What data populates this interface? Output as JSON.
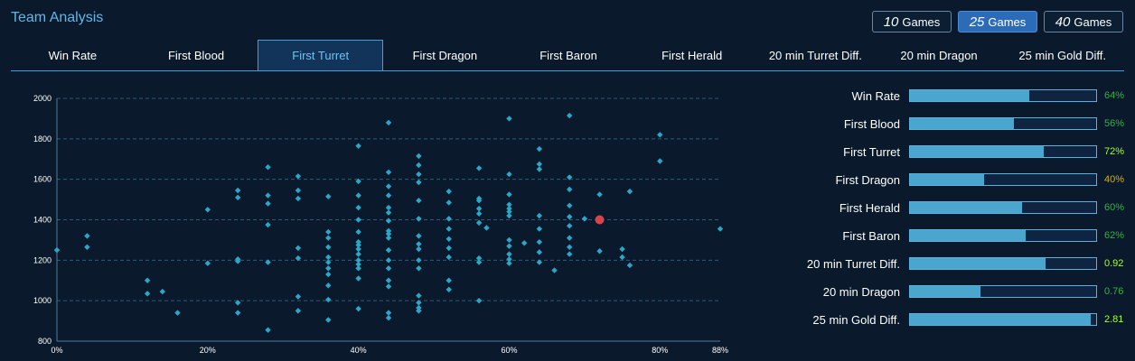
{
  "header": {
    "title": "Team Analysis",
    "games": [
      {
        "num": "10",
        "label": "Games",
        "active": false
      },
      {
        "num": "25",
        "label": "Games",
        "active": true
      },
      {
        "num": "40",
        "label": "Games",
        "active": false
      }
    ]
  },
  "tabs": [
    {
      "label": "Win Rate",
      "active": false
    },
    {
      "label": "First Blood",
      "active": false
    },
    {
      "label": "First Turret",
      "active": true
    },
    {
      "label": "First Dragon",
      "active": false
    },
    {
      "label": "First Baron",
      "active": false
    },
    {
      "label": "First Herald",
      "active": false
    },
    {
      "label": "20 min Turret Diff.",
      "active": false
    },
    {
      "label": "20 min Dragon",
      "active": false
    },
    {
      "label": "25 min Gold Diff.",
      "active": false
    }
  ],
  "chart_data": {
    "type": "scatter",
    "title": "",
    "xlabel": "",
    "ylabel": "",
    "xlim": [
      0,
      88
    ],
    "ylim": [
      800,
      2000
    ],
    "xticks": [
      0,
      20,
      40,
      60,
      80,
      88
    ],
    "xtick_labels": [
      "0%",
      "20%",
      "40%",
      "60%",
      "80%",
      "88%"
    ],
    "yticks": [
      800,
      1000,
      1200,
      1400,
      1600,
      1800,
      2000
    ],
    "ytick_labels": [
      "800",
      "1000",
      "1200",
      "1400",
      "1600",
      "1800",
      "2000"
    ],
    "grid": true,
    "colors": {
      "points": "#2aa7c8",
      "highlight": "#d9434b",
      "grid": "#2a5a78",
      "axis": "#4d7fa0"
    },
    "series": [
      {
        "points": [
          [
            0,
            1250
          ],
          [
            4,
            1320
          ],
          [
            4,
            1265
          ],
          [
            12,
            1100
          ],
          [
            12,
            1035
          ],
          [
            14,
            1045
          ],
          [
            16,
            940
          ],
          [
            20,
            1450
          ],
          [
            20,
            1185
          ],
          [
            24,
            1545
          ],
          [
            24,
            1510
          ],
          [
            24,
            1205
          ],
          [
            24,
            1195
          ],
          [
            24,
            990
          ],
          [
            24,
            940
          ],
          [
            28,
            1660
          ],
          [
            28,
            1520
          ],
          [
            28,
            1480
          ],
          [
            28,
            1375
          ],
          [
            28,
            1190
          ],
          [
            28,
            855
          ],
          [
            32,
            1615
          ],
          [
            32,
            1545
          ],
          [
            32,
            1505
          ],
          [
            32,
            1260
          ],
          [
            32,
            1210
          ],
          [
            32,
            1020
          ],
          [
            32,
            950
          ],
          [
            36,
            1515
          ],
          [
            36,
            1340
          ],
          [
            36,
            1310
          ],
          [
            36,
            1265
          ],
          [
            36,
            1215
          ],
          [
            36,
            1190
          ],
          [
            36,
            1160
          ],
          [
            36,
            1130
          ],
          [
            36,
            1075
          ],
          [
            36,
            1005
          ],
          [
            36,
            905
          ],
          [
            40,
            1765
          ],
          [
            40,
            1590
          ],
          [
            40,
            1520
          ],
          [
            40,
            1460
          ],
          [
            40,
            1400
          ],
          [
            40,
            1340
          ],
          [
            40,
            1290
          ],
          [
            40,
            1275
          ],
          [
            40,
            1255
          ],
          [
            40,
            1230
          ],
          [
            40,
            1200
          ],
          [
            40,
            1180
          ],
          [
            40,
            1160
          ],
          [
            40,
            1110
          ],
          [
            40,
            960
          ],
          [
            44,
            1880
          ],
          [
            44,
            1635
          ],
          [
            44,
            1565
          ],
          [
            44,
            1520
          ],
          [
            44,
            1460
          ],
          [
            44,
            1435
          ],
          [
            44,
            1395
          ],
          [
            44,
            1345
          ],
          [
            44,
            1330
          ],
          [
            44,
            1310
          ],
          [
            44,
            1250
          ],
          [
            44,
            1200
          ],
          [
            44,
            1160
          ],
          [
            44,
            1100
          ],
          [
            44,
            1070
          ],
          [
            44,
            940
          ],
          [
            44,
            915
          ],
          [
            48,
            1715
          ],
          [
            48,
            1670
          ],
          [
            48,
            1625
          ],
          [
            48,
            1585
          ],
          [
            48,
            1495
          ],
          [
            48,
            1405
          ],
          [
            48,
            1320
          ],
          [
            48,
            1280
          ],
          [
            48,
            1255
          ],
          [
            48,
            1200
          ],
          [
            48,
            1160
          ],
          [
            48,
            1025
          ],
          [
            48,
            990
          ],
          [
            48,
            965
          ],
          [
            48,
            950
          ],
          [
            52,
            1540
          ],
          [
            52,
            1485
          ],
          [
            52,
            1405
          ],
          [
            52,
            1355
          ],
          [
            52,
            1305
          ],
          [
            52,
            1260
          ],
          [
            52,
            1215
          ],
          [
            52,
            1100
          ],
          [
            52,
            1055
          ],
          [
            56,
            1655
          ],
          [
            56,
            1505
          ],
          [
            56,
            1495
          ],
          [
            56,
            1455
          ],
          [
            56,
            1430
          ],
          [
            56,
            1385
          ],
          [
            56,
            1210
          ],
          [
            56,
            1190
          ],
          [
            56,
            1000
          ],
          [
            57,
            1360
          ],
          [
            60,
            1900
          ],
          [
            60,
            1625
          ],
          [
            60,
            1525
          ],
          [
            60,
            1475
          ],
          [
            60,
            1455
          ],
          [
            60,
            1440
          ],
          [
            60,
            1420
          ],
          [
            60,
            1300
          ],
          [
            60,
            1270
          ],
          [
            60,
            1230
          ],
          [
            60,
            1205
          ],
          [
            60,
            1185
          ],
          [
            62,
            1285
          ],
          [
            64,
            1750
          ],
          [
            64,
            1675
          ],
          [
            64,
            1650
          ],
          [
            64,
            1420
          ],
          [
            64,
            1355
          ],
          [
            64,
            1290
          ],
          [
            64,
            1240
          ],
          [
            64,
            1190
          ],
          [
            66,
            1150
          ],
          [
            68,
            1915
          ],
          [
            68,
            1610
          ],
          [
            68,
            1550
          ],
          [
            68,
            1470
          ],
          [
            68,
            1415
          ],
          [
            68,
            1370
          ],
          [
            68,
            1310
          ],
          [
            68,
            1265
          ],
          [
            68,
            1230
          ],
          [
            70,
            1405
          ],
          [
            72,
            1525
          ],
          [
            72,
            1245
          ],
          [
            75,
            1255
          ],
          [
            75,
            1215
          ],
          [
            76,
            1540
          ],
          [
            76,
            1175
          ],
          [
            80,
            1820
          ],
          [
            80,
            1690
          ],
          [
            88,
            1355
          ]
        ]
      }
    ],
    "highlight": {
      "x": 72,
      "y": 1400
    }
  },
  "stats": [
    {
      "label": "Win Rate",
      "value": "64%",
      "fill": 0.64,
      "color": "#2eb53e"
    },
    {
      "label": "First Blood",
      "value": "56%",
      "fill": 0.56,
      "color": "#2eb53e"
    },
    {
      "label": "First Turret",
      "value": "72%",
      "fill": 0.72,
      "color": "#a6ff2e"
    },
    {
      "label": "First Dragon",
      "value": "40%",
      "fill": 0.4,
      "color": "#d6b000"
    },
    {
      "label": "First Herald",
      "value": "60%",
      "fill": 0.6,
      "color": "#2eb53e"
    },
    {
      "label": "First Baron",
      "value": "62%",
      "fill": 0.62,
      "color": "#2eb53e"
    },
    {
      "label": "20 min Turret Diff.",
      "value": "0.92",
      "fill": 0.73,
      "color": "#a6ff2e"
    },
    {
      "label": "20 min Dragon",
      "value": "0.76",
      "fill": 0.38,
      "color": "#2eb53e"
    },
    {
      "label": "25 min Gold Diff.",
      "value": "2.81",
      "fill": 0.97,
      "color": "#a6ff2e"
    }
  ]
}
